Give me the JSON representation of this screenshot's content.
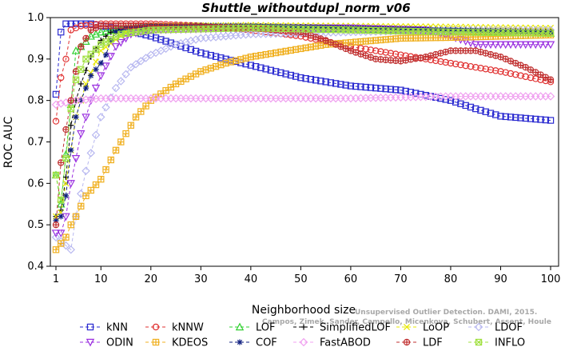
{
  "chart_data": {
    "type": "line",
    "title": "Shuttle_withoutdupl_norm_v06",
    "xlabel": "Neighborhood size",
    "ylabel": "ROC AUC",
    "xlim": [
      1,
      100
    ],
    "ylim": [
      0.4,
      1.0
    ],
    "xticks": [
      1,
      10,
      20,
      30,
      40,
      50,
      60,
      70,
      80,
      90,
      100
    ],
    "yticks": [
      0.4,
      0.5,
      0.6,
      0.7,
      0.8,
      0.9,
      1.0
    ],
    "xtick_labels": [
      "1",
      "10",
      "20",
      "30",
      "40",
      "50",
      "60",
      "70",
      "80",
      "90",
      "100"
    ],
    "ytick_labels": [
      "0.4",
      "0.5",
      "0.6",
      "0.7",
      "0.8",
      "0.9",
      "1.0"
    ],
    "grid": false,
    "legend_position": "bottom",
    "watermark": {
      "line1": "Unsupervised Outlier Detection. DAMI, 2015.",
      "line2": "Campos, Zimek, Sander, Campello, Micenkova, Schubert, Assent, Houle"
    },
    "series": [
      {
        "name": "kNN",
        "color": "#2a2ad0",
        "marker": "square",
        "line": "dash",
        "points": [
          [
            1,
            0.815
          ],
          [
            2,
            0.965
          ],
          [
            3,
            0.985
          ],
          [
            5,
            0.985
          ],
          [
            8,
            0.985
          ],
          [
            10,
            0.98
          ],
          [
            15,
            0.97
          ],
          [
            20,
            0.955
          ],
          [
            25,
            0.935
          ],
          [
            30,
            0.915
          ],
          [
            40,
            0.885
          ],
          [
            50,
            0.855
          ],
          [
            60,
            0.835
          ],
          [
            70,
            0.825
          ],
          [
            80,
            0.8
          ],
          [
            85,
            0.78
          ],
          [
            90,
            0.762
          ],
          [
            100,
            0.752
          ]
        ]
      },
      {
        "name": "kNNW",
        "color": "#e03030",
        "marker": "circle",
        "line": "dash",
        "points": [
          [
            1,
            0.75
          ],
          [
            2,
            0.855
          ],
          [
            3,
            0.9
          ],
          [
            4,
            0.97
          ],
          [
            6,
            0.98
          ],
          [
            10,
            0.985
          ],
          [
            20,
            0.985
          ],
          [
            30,
            0.98
          ],
          [
            40,
            0.97
          ],
          [
            50,
            0.955
          ],
          [
            60,
            0.93
          ],
          [
            70,
            0.91
          ],
          [
            80,
            0.89
          ],
          [
            90,
            0.87
          ],
          [
            100,
            0.845
          ]
        ]
      },
      {
        "name": "LOF",
        "color": "#30d030",
        "marker": "triangle-up",
        "line": "dash",
        "points": [
          [
            1,
            0.62
          ],
          [
            2,
            0.55
          ],
          [
            3,
            0.67
          ],
          [
            4,
            0.79
          ],
          [
            5,
            0.92
          ],
          [
            6,
            0.93
          ],
          [
            8,
            0.955
          ],
          [
            10,
            0.965
          ],
          [
            15,
            0.975
          ],
          [
            20,
            0.978
          ],
          [
            30,
            0.978
          ],
          [
            50,
            0.975
          ],
          [
            70,
            0.97
          ],
          [
            90,
            0.965
          ],
          [
            100,
            0.962
          ]
        ]
      },
      {
        "name": "SimplifiedLOF",
        "color": "#000000",
        "marker": "plus",
        "line": "dash",
        "points": [
          [
            1,
            0.52
          ],
          [
            2,
            0.535
          ],
          [
            3,
            0.615
          ],
          [
            4,
            0.74
          ],
          [
            5,
            0.8
          ],
          [
            6,
            0.84
          ],
          [
            8,
            0.905
          ],
          [
            10,
            0.945
          ],
          [
            12,
            0.965
          ],
          [
            15,
            0.975
          ],
          [
            20,
            0.98
          ],
          [
            40,
            0.98
          ],
          [
            60,
            0.975
          ],
          [
            80,
            0.97
          ],
          [
            100,
            0.97
          ]
        ]
      },
      {
        "name": "LoOP",
        "color": "#e8e800",
        "marker": "x",
        "line": "dash",
        "points": [
          [
            1,
            0.52
          ],
          [
            2,
            0.53
          ],
          [
            3,
            0.6
          ],
          [
            4,
            0.68
          ],
          [
            5,
            0.76
          ],
          [
            7,
            0.84
          ],
          [
            10,
            0.92
          ],
          [
            15,
            0.965
          ],
          [
            20,
            0.98
          ],
          [
            40,
            0.982
          ],
          [
            60,
            0.98
          ],
          [
            80,
            0.978
          ],
          [
            100,
            0.975
          ]
        ]
      },
      {
        "name": "LDOF",
        "color": "#b8b8f0",
        "marker": "diamond",
        "line": "dash",
        "points": [
          [
            1,
            0.47
          ],
          [
            2,
            0.46
          ],
          [
            3,
            0.45
          ],
          [
            4,
            0.44
          ],
          [
            5,
            0.52
          ],
          [
            7,
            0.63
          ],
          [
            10,
            0.76
          ],
          [
            13,
            0.83
          ],
          [
            16,
            0.88
          ],
          [
            20,
            0.91
          ],
          [
            25,
            0.935
          ],
          [
            30,
            0.95
          ],
          [
            40,
            0.96
          ],
          [
            60,
            0.965
          ],
          [
            80,
            0.97
          ],
          [
            100,
            0.97
          ]
        ]
      },
      {
        "name": "ODIN",
        "color": "#9b30e0",
        "marker": "triangle-down",
        "line": "dash",
        "points": [
          [
            1,
            0.48
          ],
          [
            2,
            0.48
          ],
          [
            3,
            0.52
          ],
          [
            4,
            0.6
          ],
          [
            6,
            0.72
          ],
          [
            8,
            0.8
          ],
          [
            10,
            0.86
          ],
          [
            13,
            0.93
          ],
          [
            16,
            0.96
          ],
          [
            20,
            0.97
          ],
          [
            40,
            0.975
          ],
          [
            60,
            0.975
          ],
          [
            75,
            0.97
          ],
          [
            80,
            0.955
          ],
          [
            85,
            0.935
          ],
          [
            90,
            0.935
          ],
          [
            100,
            0.935
          ]
        ]
      },
      {
        "name": "KDEOS",
        "color": "#f0b020",
        "marker": "square-cross",
        "line": "dash",
        "points": [
          [
            1,
            0.44
          ],
          [
            3,
            0.47
          ],
          [
            4,
            0.5
          ],
          [
            5,
            0.52
          ],
          [
            7,
            0.57
          ],
          [
            10,
            0.61
          ],
          [
            13,
            0.68
          ],
          [
            17,
            0.76
          ],
          [
            20,
            0.8
          ],
          [
            25,
            0.84
          ],
          [
            30,
            0.87
          ],
          [
            35,
            0.89
          ],
          [
            40,
            0.905
          ],
          [
            50,
            0.925
          ],
          [
            55,
            0.935
          ],
          [
            60,
            0.94
          ],
          [
            65,
            0.945
          ],
          [
            70,
            0.95
          ],
          [
            80,
            0.952
          ],
          [
            90,
            0.955
          ],
          [
            100,
            0.958
          ]
        ]
      },
      {
        "name": "COF",
        "color": "#102080",
        "marker": "asterisk",
        "line": "dash",
        "points": [
          [
            1,
            0.51
          ],
          [
            2,
            0.52
          ],
          [
            3,
            0.57
          ],
          [
            4,
            0.68
          ],
          [
            5,
            0.76
          ],
          [
            6,
            0.8
          ],
          [
            7,
            0.83
          ],
          [
            8,
            0.86
          ],
          [
            10,
            0.89
          ],
          [
            11,
            0.91
          ],
          [
            12,
            0.945
          ],
          [
            13,
            0.965
          ],
          [
            15,
            0.975
          ],
          [
            20,
            0.98
          ],
          [
            40,
            0.98
          ],
          [
            60,
            0.975
          ],
          [
            80,
            0.97
          ],
          [
            100,
            0.965
          ]
        ]
      },
      {
        "name": "FastABOD",
        "color": "#f0a0f0",
        "marker": "diamond",
        "line": "dash",
        "points": [
          [
            1,
            0.79
          ],
          [
            5,
            0.8
          ],
          [
            10,
            0.805
          ],
          [
            20,
            0.805
          ],
          [
            40,
            0.805
          ],
          [
            60,
            0.805
          ],
          [
            80,
            0.81
          ],
          [
            100,
            0.81
          ]
        ]
      },
      {
        "name": "LDF",
        "color": "#c03030",
        "marker": "circle-plus",
        "line": "dash",
        "points": [
          [
            1,
            0.5
          ],
          [
            2,
            0.65
          ],
          [
            3,
            0.73
          ],
          [
            4,
            0.8
          ],
          [
            5,
            0.87
          ],
          [
            6,
            0.93
          ],
          [
            8,
            0.97
          ],
          [
            10,
            0.98
          ],
          [
            20,
            0.98
          ],
          [
            40,
            0.975
          ],
          [
            50,
            0.965
          ],
          [
            55,
            0.945
          ],
          [
            60,
            0.92
          ],
          [
            65,
            0.9
          ],
          [
            70,
            0.895
          ],
          [
            75,
            0.905
          ],
          [
            80,
            0.92
          ],
          [
            85,
            0.92
          ],
          [
            90,
            0.905
          ],
          [
            95,
            0.88
          ],
          [
            100,
            0.85
          ]
        ]
      },
      {
        "name": "INFLO",
        "color": "#a0e040",
        "marker": "square-x",
        "line": "dash",
        "points": [
          [
            1,
            0.62
          ],
          [
            2,
            0.56
          ],
          [
            3,
            0.66
          ],
          [
            4,
            0.78
          ],
          [
            5,
            0.85
          ],
          [
            7,
            0.9
          ],
          [
            10,
            0.935
          ],
          [
            14,
            0.96
          ],
          [
            20,
            0.97
          ],
          [
            40,
            0.975
          ],
          [
            60,
            0.97
          ],
          [
            80,
            0.965
          ],
          [
            100,
            0.962
          ]
        ]
      }
    ]
  }
}
